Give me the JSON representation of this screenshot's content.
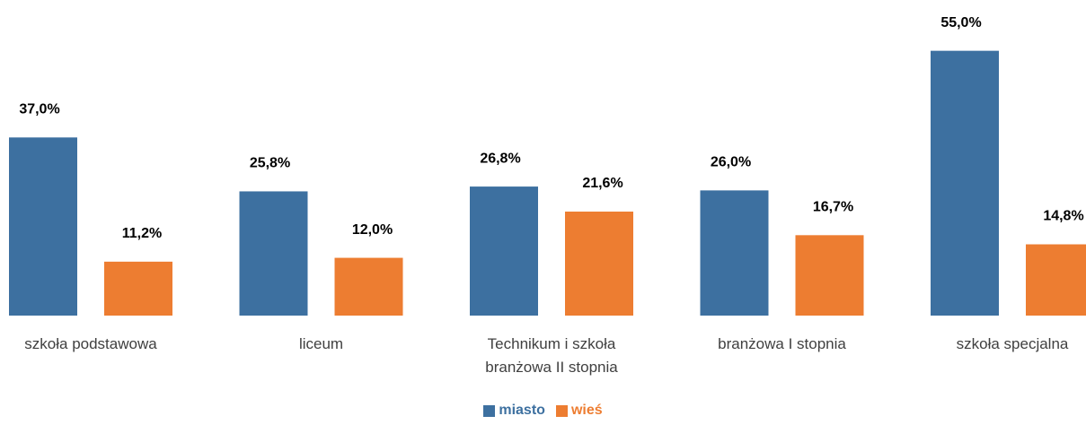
{
  "chart_data": {
    "type": "bar",
    "categories": [
      "szkoła podstawowa",
      "liceum",
      "Technikum i szkoła branżowa II stopnia",
      "branżowa I stopnia",
      "szkoła specjalna"
    ],
    "series": [
      {
        "name": "miasto",
        "color": "#3d70a0",
        "values": [
          37.0,
          25.8,
          26.8,
          26.0,
          55.0
        ],
        "value_labels": [
          "37,0%",
          "25,8%",
          "26,8%",
          "26,0%",
          "55,0%"
        ]
      },
      {
        "name": "wieś",
        "color": "#ed7d31",
        "values": [
          11.2,
          12.0,
          21.6,
          16.7,
          14.8
        ],
        "value_labels": [
          "11,2%",
          "12,0%",
          "21,6%",
          "16,7%",
          "14,8%"
        ]
      }
    ]
  }
}
